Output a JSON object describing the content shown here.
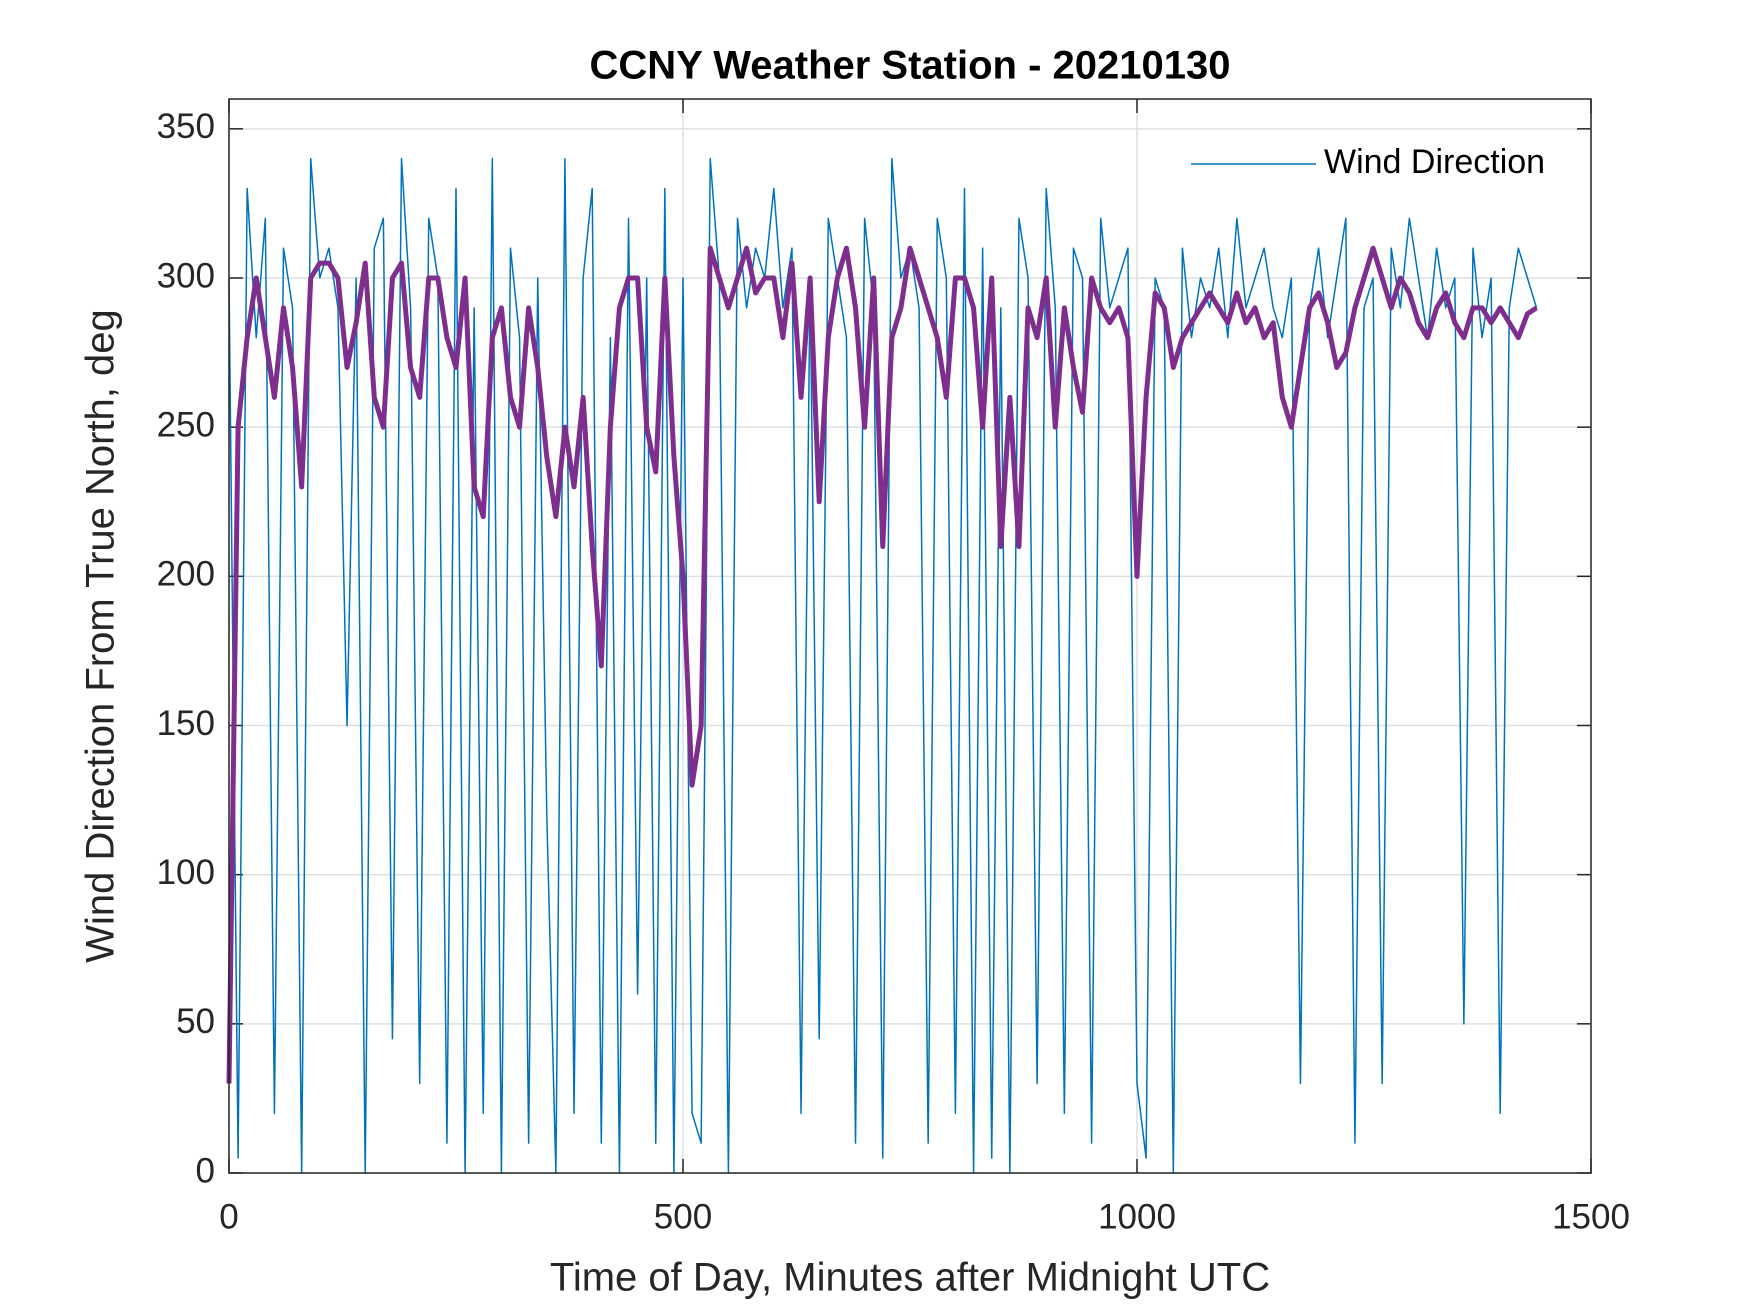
{
  "chart_data": {
    "type": "line",
    "title": "CCNY Weather Station - 20210130",
    "x_label": "Time of Day, Minutes after Midnight UTC",
    "y_label": "Wind Direction From True North, deg",
    "x": [
      0,
      10,
      20,
      30,
      40,
      50,
      60,
      70,
      80,
      90,
      100,
      110,
      120,
      130,
      140,
      150,
      160,
      170,
      180,
      190,
      200,
      210,
      220,
      230,
      240,
      250,
      260,
      270,
      280,
      290,
      300,
      310,
      320,
      330,
      340,
      350,
      360,
      370,
      380,
      390,
      400,
      410,
      420,
      430,
      440,
      450,
      460,
      470,
      480,
      490,
      500,
      510,
      520,
      530,
      540,
      550,
      560,
      570,
      580,
      590,
      600,
      610,
      620,
      630,
      640,
      650,
      660,
      670,
      680,
      690,
      700,
      710,
      720,
      730,
      740,
      750,
      760,
      770,
      780,
      790,
      800,
      810,
      820,
      830,
      840,
      850,
      860,
      870,
      880,
      890,
      900,
      910,
      920,
      930,
      940,
      950,
      960,
      970,
      980,
      990,
      1000,
      1010,
      1020,
      1030,
      1040,
      1050,
      1060,
      1070,
      1080,
      1090,
      1100,
      1110,
      1120,
      1130,
      1140,
      1150,
      1160,
      1170,
      1180,
      1190,
      1200,
      1210,
      1220,
      1230,
      1240,
      1250,
      1260,
      1270,
      1280,
      1290,
      1300,
      1310,
      1320,
      1330,
      1340,
      1350,
      1360,
      1370,
      1380,
      1390,
      1400,
      1410,
      1420,
      1430,
      1440
    ],
    "series": [
      {
        "name": "Wind Direction",
        "color": "#0072bd",
        "width": 1.5,
        "values": [
          300,
          5,
          330,
          280,
          320,
          20,
          310,
          290,
          0,
          340,
          300,
          310,
          290,
          150,
          300,
          0,
          310,
          320,
          45,
          340,
          290,
          30,
          320,
          300,
          10,
          330,
          0,
          290,
          20,
          340,
          0,
          310,
          280,
          10,
          300,
          120,
          0,
          340,
          20,
          300,
          330,
          10,
          280,
          0,
          320,
          60,
          300,
          10,
          330,
          0,
          300,
          20,
          10,
          340,
          300,
          0,
          320,
          290,
          310,
          300,
          330,
          290,
          310,
          20,
          300,
          45,
          320,
          300,
          280,
          10,
          320,
          290,
          5,
          340,
          300,
          310,
          290,
          10,
          320,
          300,
          20,
          330,
          0,
          310,
          5,
          290,
          0,
          320,
          300,
          30,
          330,
          290,
          20,
          310,
          300,
          10,
          320,
          290,
          300,
          310,
          30,
          5,
          300,
          290,
          0,
          310,
          280,
          300,
          290,
          310,
          280,
          320,
          290,
          300,
          310,
          290,
          280,
          300,
          30,
          290,
          310,
          280,
          300,
          320,
          10,
          290,
          300,
          30,
          310,
          290,
          320,
          300,
          280,
          310,
          290,
          300,
          50,
          310,
          280,
          300,
          20,
          290,
          310,
          300,
          290
        ]
      },
      {
        "color": "#7e2f8e",
        "width": 5,
        "values": [
          30,
          250,
          280,
          300,
          280,
          260,
          290,
          270,
          230,
          300,
          305,
          305,
          300,
          270,
          285,
          305,
          260,
          250,
          300,
          305,
          270,
          260,
          300,
          300,
          280,
          270,
          300,
          230,
          220,
          280,
          290,
          260,
          250,
          290,
          270,
          240,
          220,
          250,
          230,
          260,
          210,
          170,
          250,
          290,
          300,
          300,
          250,
          235,
          300,
          240,
          200,
          130,
          150,
          310,
          300,
          290,
          300,
          310,
          295,
          300,
          300,
          280,
          305,
          260,
          300,
          225,
          280,
          300,
          310,
          290,
          250,
          300,
          210,
          280,
          290,
          310,
          300,
          290,
          280,
          260,
          300,
          300,
          290,
          250,
          300,
          210,
          260,
          210,
          290,
          280,
          300,
          250,
          290,
          270,
          255,
          300,
          290,
          285,
          290,
          280,
          200,
          260,
          295,
          290,
          270,
          280,
          285,
          290,
          295,
          290,
          285,
          295,
          285,
          290,
          280,
          285,
          260,
          250,
          270,
          290,
          295,
          285,
          270,
          275,
          290,
          300,
          310,
          300,
          290,
          300,
          295,
          285,
          280,
          290,
          295,
          285,
          280,
          290,
          290,
          285,
          290,
          285,
          280,
          288,
          290
        ]
      }
    ],
    "xlim": [
      0,
      1500
    ],
    "xticks": [
      0,
      500,
      1000,
      1500
    ],
    "ylim": [
      0,
      360
    ],
    "yticks": [
      0,
      50,
      100,
      150,
      200,
      250,
      300,
      350
    ],
    "grid": true,
    "legend": "upper right"
  }
}
